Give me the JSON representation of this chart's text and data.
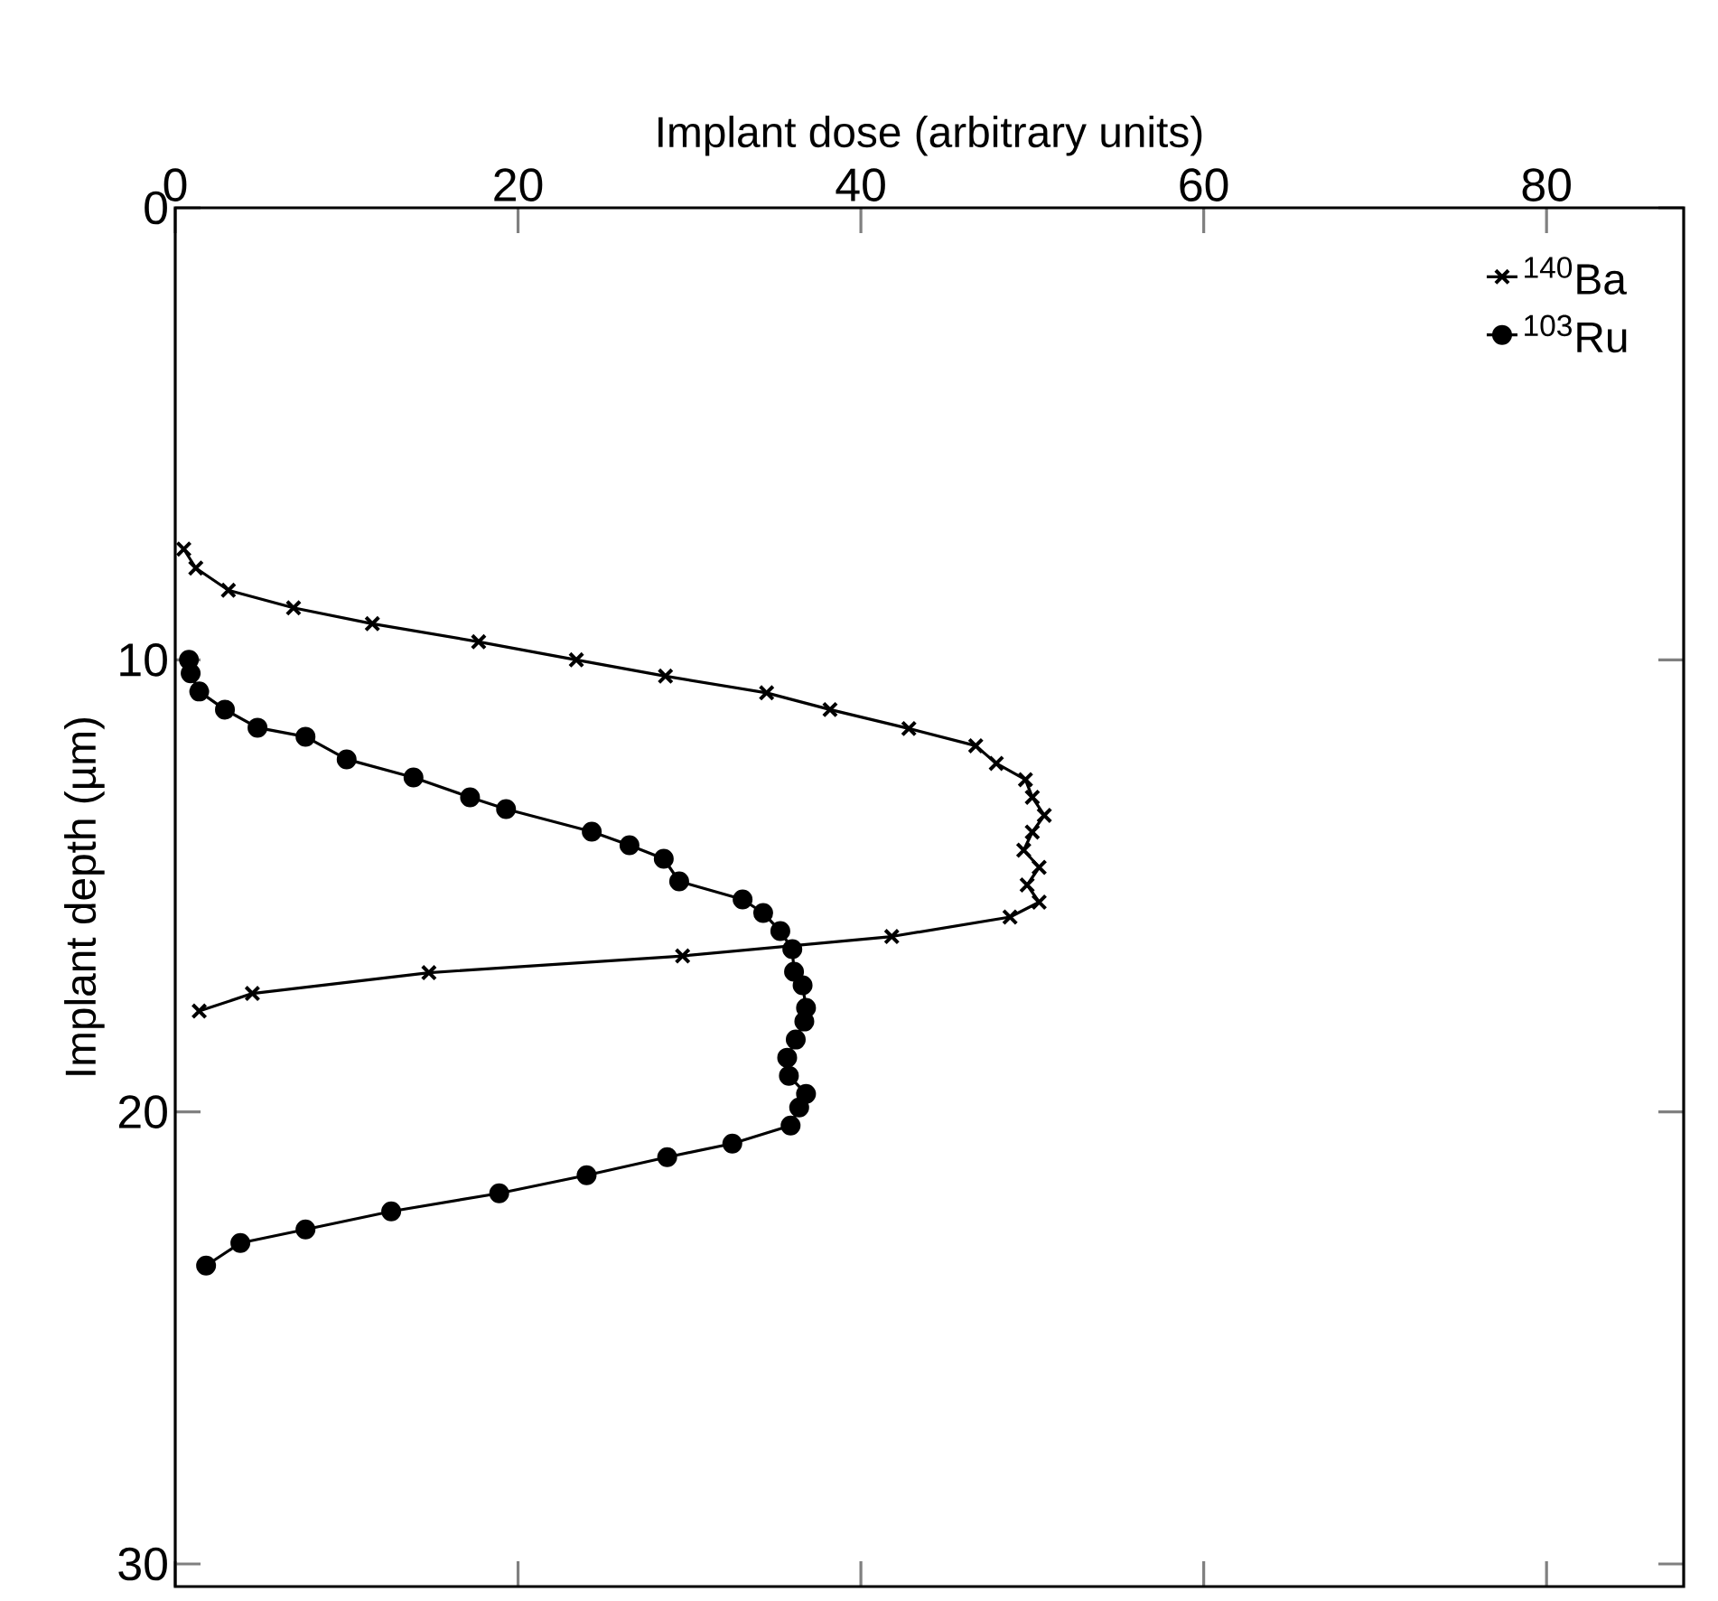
{
  "chart_data": {
    "type": "line",
    "xlabel": "Implant dose (arbitrary units)",
    "ylabel": "Implant depth (µm)",
    "xlim": [
      0,
      88
    ],
    "xticks": [
      0,
      20,
      40,
      60,
      80
    ],
    "ylim": [
      30.5,
      0
    ],
    "yticks": [
      0,
      10,
      20,
      30
    ],
    "legend": "top right",
    "series": [
      {
        "name": "$^{140}$Ba",
        "color": "#000000",
        "marker": "cross",
        "x": [
          0.5,
          1.2,
          3.1,
          6.9,
          11.5,
          17.7,
          23.4,
          28.6,
          34.5,
          38.2,
          42.8,
          46.7,
          47.9,
          49.6,
          50.0,
          50.7,
          50.0,
          49.5,
          50.4,
          49.7,
          50.4,
          48.7,
          41.8,
          29.6,
          14.8,
          4.5,
          1.4
        ],
        "values": [
          7.55,
          7.97,
          8.46,
          8.85,
          9.2,
          9.6,
          10.0,
          10.36,
          10.73,
          11.1,
          11.52,
          11.9,
          12.29,
          12.65,
          13.04,
          13.44,
          13.81,
          14.21,
          14.59,
          14.98,
          15.36,
          15.69,
          16.12,
          16.55,
          16.92,
          17.38,
          17.77
        ]
      },
      {
        "name": "$^{103}$Ru",
        "color": "#000000",
        "marker": "circle",
        "x": [
          0.8,
          0.9,
          1.4,
          2.9,
          4.8,
          7.6,
          10.0,
          13.9,
          17.2,
          19.3,
          24.3,
          26.5,
          28.5,
          29.4,
          33.1,
          34.3,
          35.3,
          36.0,
          36.1,
          36.6,
          36.8,
          36.7,
          36.2,
          35.7,
          35.8,
          36.8,
          36.4,
          35.9,
          32.5,
          28.7,
          24.0,
          18.9,
          12.6,
          7.6,
          3.8,
          1.8
        ],
        "values": [
          10.0,
          10.3,
          10.7,
          11.1,
          11.5,
          11.7,
          12.2,
          12.6,
          13.04,
          13.3,
          13.8,
          14.1,
          14.4,
          14.9,
          15.3,
          15.6,
          16.0,
          16.4,
          16.9,
          17.2,
          17.7,
          18.0,
          18.4,
          18.8,
          19.2,
          19.6,
          19.9,
          20.3,
          20.7,
          21.0,
          21.4,
          21.8,
          22.2,
          22.6,
          22.9,
          23.4
        ]
      }
    ]
  }
}
